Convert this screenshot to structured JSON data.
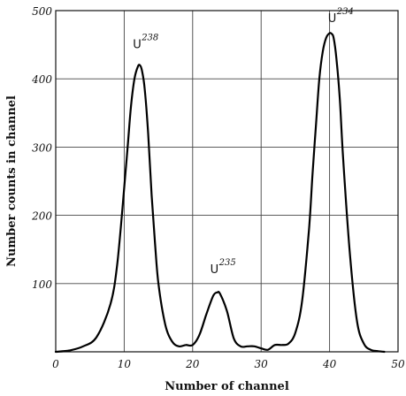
{
  "chart_data": {
    "type": "line",
    "xlabel": "Number of channel",
    "ylabel": "Number counts in channel",
    "xlim": [
      0,
      50
    ],
    "ylim": [
      0,
      500
    ],
    "x_ticks": [
      "0",
      "10",
      "20",
      "30",
      "40",
      "50"
    ],
    "y_ticks": [
      "100",
      "200",
      "300",
      "400",
      "500"
    ],
    "grid": true,
    "annotations": [
      {
        "base": "U",
        "sup": "238",
        "x": 12.3,
        "y": 445
      },
      {
        "base": "U",
        "sup": "235",
        "x": 23.6,
        "y": 115
      },
      {
        "base": "U",
        "sup": "234",
        "x": 40.8,
        "y": 483
      }
    ],
    "series": [
      {
        "x": [
          0,
          2,
          4,
          6,
          8,
          9,
          10,
          10.5,
          11,
          11.5,
          12,
          12.3,
          12.6,
          13,
          13.5,
          14,
          14.5,
          15,
          16,
          17,
          18,
          19,
          20,
          21,
          22,
          23,
          23.6,
          24,
          25,
          26,
          27,
          28,
          29,
          30,
          31,
          32,
          33,
          34,
          35,
          36,
          37,
          37.5,
          38,
          38.5,
          39,
          39.5,
          40,
          40.3,
          40.6,
          41,
          41.5,
          42,
          43,
          44,
          45,
          46,
          47,
          48
        ],
        "y": [
          0,
          2,
          8,
          22,
          70,
          130,
          240,
          300,
          360,
          400,
          418,
          420,
          412,
          385,
          320,
          230,
          160,
          100,
          40,
          15,
          8,
          10,
          10,
          25,
          55,
          82,
          87,
          85,
          60,
          20,
          8,
          8,
          8,
          5,
          3,
          10,
          10,
          12,
          28,
          75,
          180,
          260,
          330,
          400,
          440,
          460,
          467,
          466,
          460,
          430,
          370,
          280,
          140,
          45,
          12,
          3,
          1,
          0
        ]
      }
    ]
  }
}
